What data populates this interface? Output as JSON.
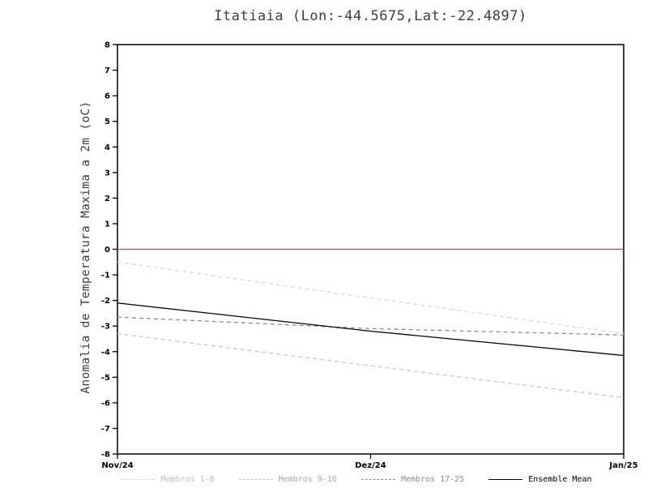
{
  "page": {
    "title": "Itatiaia (Lon:-44.5675,Lat:-22.4897)"
  },
  "chart_data": {
    "type": "line",
    "title": "Itatiaia (Lon:-44.5675,Lat:-22.4897)",
    "ylabel": "Anomalia de Temperatura Maxima a 2m (oC)",
    "xlabel": "",
    "x_categories": [
      "Nov/24",
      "Dez/24",
      "Jan/25"
    ],
    "ylim": [
      -8,
      8
    ],
    "ytick_step": 1,
    "grid": false,
    "legend_position": "bottom",
    "frame_color": "#000000",
    "zero_line": {
      "value": 0,
      "color": "#ef3b2c"
    },
    "series": [
      {
        "name": "Membros 1-8",
        "style": "dashed",
        "color": "#d9d9d9",
        "label_color": "#bdbdbd",
        "values": [
          -0.5,
          -1.9,
          -3.3
        ]
      },
      {
        "name": "Membros 9-16",
        "style": "dashed",
        "color": "#c9c9c9",
        "label_color": "#a8a8a8",
        "values": [
          -3.3,
          -4.55,
          -5.8
        ]
      },
      {
        "name": "Membros 17-25",
        "style": "dashed",
        "color": "#8c8c8c",
        "label_color": "#8c8c8c",
        "values": [
          -2.65,
          -3.1,
          -3.35
        ]
      },
      {
        "name": "Ensemble Mean",
        "style": "solid",
        "color": "#000000",
        "label_color": "#000000",
        "values": [
          -2.1,
          -3.2,
          -4.15
        ]
      }
    ]
  }
}
